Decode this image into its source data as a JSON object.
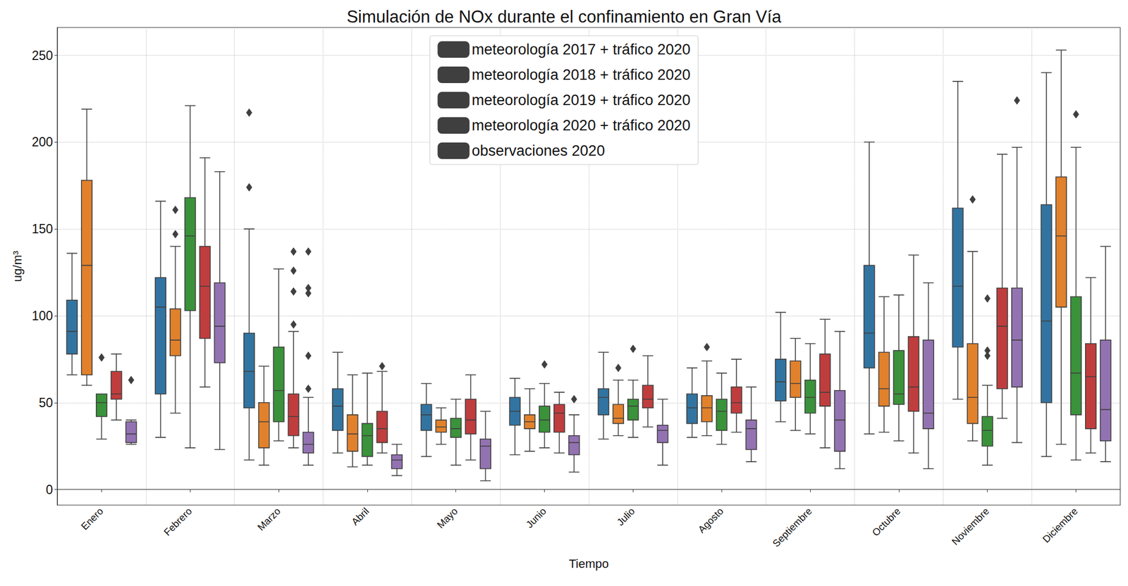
{
  "chart_data": {
    "type": "boxplot",
    "title": "Simulación de NOx durante el confinamiento en Gran Vía",
    "x_label": "Tiempo",
    "y_label": "ug/m³",
    "categories": [
      "Enero",
      "Febrero",
      "Marzo",
      "Abril",
      "Mayo",
      "Junio",
      "Julio",
      "Agosto",
      "Septiembre",
      "Octubre",
      "Noviembre",
      "Diciembre"
    ],
    "ylim": [
      -9,
      266
    ],
    "yticks": [
      0,
      50,
      100,
      150,
      200,
      250
    ],
    "grid": true,
    "legend": "top",
    "series": [
      {
        "name": "meteorología 2017 + tráfico 2020",
        "color": "#3274a1",
        "values": [
          [
            66,
            78,
            91,
            109,
            136
          ],
          [
            30,
            55,
            105,
            122,
            166
          ],
          [
            17,
            47,
            68,
            90,
            150
          ],
          [
            21,
            34,
            48,
            58,
            79
          ],
          [
            19,
            34,
            43,
            49,
            61
          ],
          [
            20,
            37,
            45,
            53,
            64
          ],
          [
            29,
            43,
            53,
            58,
            79
          ],
          [
            30,
            38,
            47,
            55,
            70
          ],
          [
            39,
            51,
            62,
            75,
            102
          ],
          [
            32,
            70,
            90,
            129,
            200
          ],
          [
            52,
            82,
            117,
            162,
            235
          ],
          [
            19,
            50,
            97,
            164,
            240
          ]
        ],
        "outliers": [
          [],
          [],
          [
            174,
            217
          ],
          [],
          [],
          [],
          [],
          [],
          [],
          [],
          [],
          []
        ]
      },
      {
        "name": "meteorología 2018 + tráfico 2020",
        "color": "#e1812c",
        "values": [
          [
            60,
            66,
            129,
            178,
            219
          ],
          [
            44,
            77,
            86,
            104,
            140
          ],
          [
            14,
            24,
            39,
            50,
            71
          ],
          [
            13,
            22,
            32,
            43,
            66
          ],
          [
            26,
            33,
            36,
            40,
            47
          ],
          [
            22,
            35,
            39,
            43,
            58
          ],
          [
            31,
            38,
            41,
            49,
            63
          ],
          [
            31,
            39,
            47,
            54,
            74
          ],
          [
            34,
            53,
            61,
            74,
            87
          ],
          [
            33,
            48,
            58,
            79,
            111
          ],
          [
            28,
            38,
            53,
            84,
            137
          ],
          [
            26,
            105,
            146,
            180,
            253
          ]
        ],
        "outliers": [
          [],
          [
            147,
            161
          ],
          [],
          [],
          [],
          [],
          [
            70
          ],
          [
            82
          ],
          [],
          [],
          [
            167
          ],
          []
        ]
      },
      {
        "name": "meteorología 2019 + tráfico 2020",
        "color": "#3a923a",
        "values": [
          [
            29,
            42,
            50,
            55,
            55
          ],
          [
            24,
            103,
            146,
            168,
            221
          ],
          [
            28,
            39,
            57,
            82,
            127
          ],
          [
            14,
            19,
            31,
            38,
            67
          ],
          [
            14,
            30,
            35,
            41,
            52
          ],
          [
            24,
            33,
            40,
            48,
            61
          ],
          [
            30,
            40,
            48,
            52,
            63
          ],
          [
            26,
            34,
            45,
            52,
            67
          ],
          [
            32,
            44,
            53,
            63,
            84
          ],
          [
            28,
            49,
            55,
            80,
            112
          ],
          [
            14,
            25,
            34,
            42,
            60
          ],
          [
            17,
            43,
            67,
            111,
            197
          ]
        ],
        "outliers": [
          [
            76
          ],
          [],
          [],
          [],
          [],
          [
            72
          ],
          [
            81
          ],
          [],
          [],
          [],
          [
            77,
            80,
            110
          ],
          [
            216
          ]
        ]
      },
      {
        "name": "meteorología 2020 + tráfico 2020",
        "color": "#c03d3e",
        "values": [
          [
            40,
            52,
            55,
            68,
            78
          ],
          [
            59,
            87,
            117,
            140,
            191
          ],
          [
            24,
            31,
            42,
            55,
            91
          ],
          [
            21,
            27,
            35,
            45,
            68
          ],
          [
            17,
            32,
            40,
            52,
            66
          ],
          [
            21,
            33,
            44,
            49,
            56
          ],
          [
            36,
            47,
            52,
            60,
            77
          ],
          [
            33,
            44,
            50,
            59,
            75
          ],
          [
            24,
            48,
            56,
            78,
            98
          ],
          [
            21,
            45,
            59,
            88,
            135
          ],
          [
            41,
            58,
            94,
            116,
            193
          ],
          [
            21,
            35,
            65,
            84,
            122
          ]
        ],
        "outliers": [
          [],
          [],
          [
            95,
            114,
            126,
            137
          ],
          [
            71
          ],
          [],
          [],
          [],
          [],
          [],
          [],
          [],
          []
        ]
      },
      {
        "name": "observaciones 2020",
        "color": "#9372b2",
        "values": [
          [
            26,
            27,
            32,
            39,
            40
          ],
          [
            23,
            73,
            94,
            119,
            183
          ],
          [
            14,
            21,
            26,
            33,
            53
          ],
          [
            8,
            12,
            17,
            20,
            26
          ],
          [
            5,
            12,
            25,
            29,
            45
          ],
          [
            10,
            20,
            27,
            31,
            43
          ],
          [
            14,
            27,
            34,
            37,
            52
          ],
          [
            16,
            23,
            35,
            40,
            59
          ],
          [
            12,
            22,
            40,
            57,
            91
          ],
          [
            12,
            35,
            44,
            86,
            119
          ],
          [
            27,
            59,
            86,
            116,
            197
          ],
          [
            16,
            28,
            46,
            86,
            140
          ]
        ],
        "outliers": [
          [
            63
          ],
          [],
          [
            58,
            77,
            113,
            116,
            137
          ],
          [],
          [],
          [
            52
          ],
          [],
          [],
          [],
          [],
          [
            224
          ],
          []
        ]
      }
    ]
  }
}
